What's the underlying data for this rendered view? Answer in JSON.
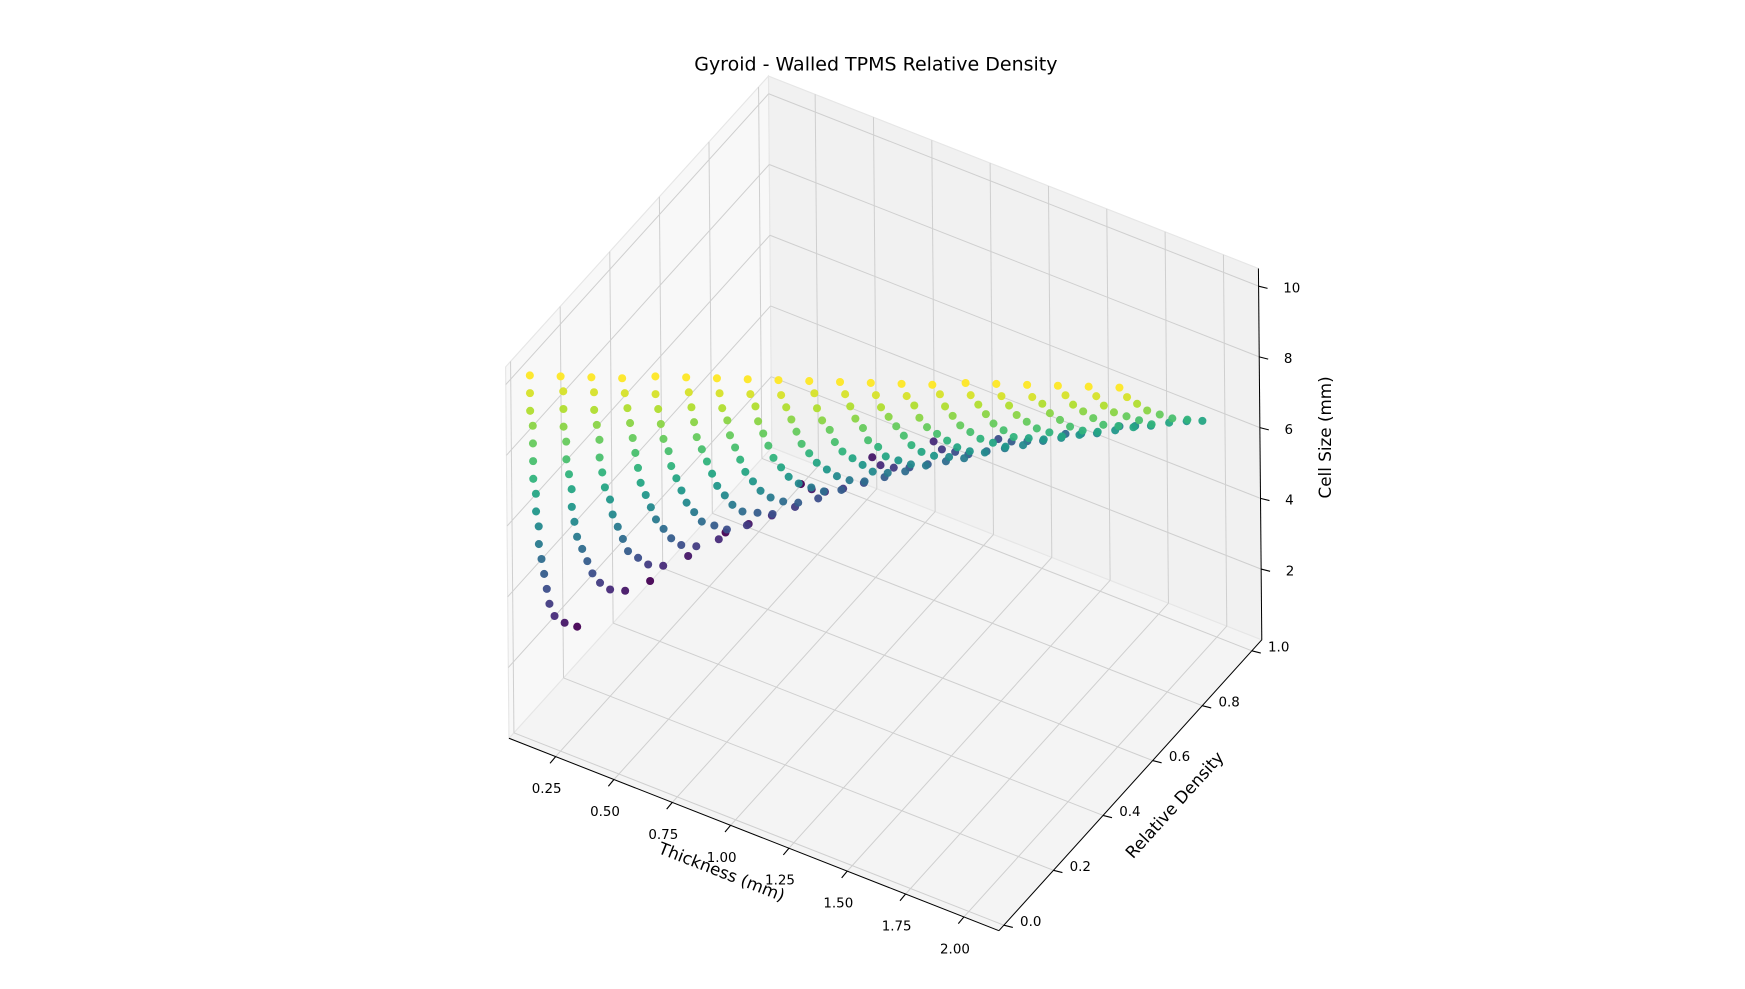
{
  "chart_data": {
    "type": "scatter3d",
    "title": "Gyroid - Walled TPMS Relative Density",
    "x_label": "Thickness (mm)",
    "y_label": "Relative Density",
    "z_label": "Cell Size (mm)",
    "colormap": "viridis",
    "grid": true,
    "xlim": [
      0.05,
      2.15
    ],
    "ylim": [
      -0.02,
      1.04
    ],
    "zlim": [
      0,
      10.5
    ],
    "xticks": [
      0.25,
      {
        "value": 0.5,
        "label": "0.50"
      },
      0.75,
      {
        "value": 1,
        "label": "1.00"
      },
      1.25,
      {
        "value": 1.5,
        "label": "1.50"
      },
      1.75,
      {
        "value": 2,
        "label": "2.00"
      }
    ],
    "yticks": [
      {
        "value": 0,
        "label": "0.0"
      },
      0.2,
      0.4,
      0.6,
      0.8,
      {
        "value": 1,
        "label": "1.0"
      }
    ],
    "zticks": [
      2,
      4,
      6,
      8,
      10
    ],
    "groups": [
      {
        "x": 0.1,
        "y": [
          0.03,
          0.03,
          0.03,
          0.04,
          0.04,
          0.04,
          0.04,
          0.05,
          0.05,
          0.06,
          0.06,
          0.07,
          0.08,
          0.09,
          0.1,
          0.12,
          0.16,
          0.21
        ],
        "z": [
          10,
          9.5,
          9,
          8.5,
          8,
          7.5,
          7,
          6.5,
          6,
          5.5,
          5,
          4.5,
          4,
          3.5,
          3,
          2.5,
          2,
          1.5
        ]
      },
      {
        "x": 0.2,
        "y": [
          0.06,
          0.07,
          0.07,
          0.07,
          0.08,
          0.08,
          0.09,
          0.1,
          0.1,
          0.11,
          0.12,
          0.14,
          0.16,
          0.18,
          0.21,
          0.25,
          0.31,
          0.41
        ],
        "z": [
          10,
          9.5,
          9,
          8.5,
          8,
          7.5,
          7,
          6.5,
          6,
          5.5,
          5,
          4.5,
          4,
          3.5,
          3,
          2.5,
          2,
          1.5
        ]
      },
      {
        "x": 0.3,
        "y": [
          0.09,
          0.1,
          0.1,
          0.11,
          0.12,
          0.12,
          0.13,
          0.14,
          0.16,
          0.17,
          0.19,
          0.21,
          0.23,
          0.27,
          0.31,
          0.37,
          0.47,
          0.62
        ],
        "z": [
          10,
          9.5,
          9,
          8.5,
          8,
          7.5,
          7,
          6.5,
          6,
          5.5,
          5,
          4.5,
          4,
          3.5,
          3,
          2.5,
          2,
          1.5
        ]
      },
      {
        "x": 0.4,
        "y": [
          0.12,
          0.13,
          0.14,
          0.15,
          0.16,
          0.17,
          0.18,
          0.19,
          0.21,
          0.23,
          0.25,
          0.28,
          0.31,
          0.35,
          0.41,
          0.5,
          0.62,
          0.83
        ],
        "z": [
          10,
          9.5,
          9,
          8.5,
          8,
          7.5,
          7,
          6.5,
          6,
          5.5,
          5,
          4.5,
          4,
          3.5,
          3,
          2.5,
          2,
          1.5
        ]
      },
      {
        "x": 0.5,
        "y": [
          0.16,
          0.16,
          0.17,
          0.18,
          0.19,
          0.21,
          0.22,
          0.24,
          0.26,
          0.28,
          0.31,
          0.34,
          0.39,
          0.44,
          0.52,
          0.62,
          0.78
        ],
        "z": [
          10,
          9.5,
          9,
          8.5,
          8,
          7.5,
          7,
          6.5,
          6,
          5.5,
          5,
          4.5,
          4,
          3.5,
          3,
          2.5,
          2
        ]
      },
      {
        "x": 0.6,
        "y": [
          0.19,
          0.2,
          0.21,
          0.22,
          0.23,
          0.25,
          0.27,
          0.29,
          0.31,
          0.34,
          0.37,
          0.41,
          0.47,
          0.53,
          0.62,
          0.74,
          0.93
        ],
        "z": [
          10,
          9.5,
          9,
          8.5,
          8,
          7.5,
          7,
          6.5,
          6,
          5.5,
          5,
          4.5,
          4,
          3.5,
          3,
          2.5,
          2
        ]
      },
      {
        "x": 0.7,
        "y": [
          0.22,
          0.23,
          0.24,
          0.26,
          0.27,
          0.29,
          0.31,
          0.33,
          0.36,
          0.39,
          0.43,
          0.48,
          0.54,
          0.62,
          0.72,
          0.87
        ],
        "z": [
          10,
          9.5,
          9,
          8.5,
          8,
          7.5,
          7,
          6.5,
          6,
          5.5,
          5,
          4.5,
          4,
          3.5,
          3,
          2.5
        ]
      },
      {
        "x": 0.8,
        "y": [
          0.25,
          0.26,
          0.28,
          0.29,
          0.31,
          0.33,
          0.35,
          0.38,
          0.41,
          0.45,
          0.5,
          0.55,
          0.62,
          0.71,
          0.83,
          0.99
        ],
        "z": [
          10,
          9.5,
          9,
          8.5,
          8,
          7.5,
          7,
          6.5,
          6,
          5.5,
          5,
          4.5,
          4,
          3.5,
          3,
          2.5
        ]
      },
      {
        "x": 0.9,
        "y": [
          0.28,
          0.29,
          0.31,
          0.33,
          0.35,
          0.37,
          0.4,
          0.43,
          0.47,
          0.51,
          0.56,
          0.62,
          0.7,
          0.8,
          0.93
        ],
        "z": [
          10,
          9.5,
          9,
          8.5,
          8,
          7.5,
          7,
          6.5,
          6,
          5.5,
          5,
          4.5,
          4,
          3.5,
          3
        ]
      },
      {
        "x": 1.0,
        "y": [
          0.31,
          0.33,
          0.34,
          0.36,
          0.39,
          0.41,
          0.44,
          0.48,
          0.52,
          0.56,
          0.62,
          0.69,
          0.78,
          0.89
        ],
        "z": [
          10,
          9.5,
          9,
          8.5,
          8,
          7.5,
          7,
          6.5,
          6,
          5.5,
          5,
          4.5,
          4,
          3.5
        ]
      },
      {
        "x": 1.1,
        "y": [
          0.34,
          0.36,
          0.38,
          0.4,
          0.43,
          0.45,
          0.49,
          0.52,
          0.57,
          0.62,
          0.68,
          0.76,
          0.85,
          0.97
        ],
        "z": [
          10,
          9.5,
          9,
          8.5,
          8,
          7.5,
          7,
          6.5,
          6,
          5.5,
          5,
          4.5,
          4,
          3.5
        ]
      },
      {
        "x": 1.2,
        "y": [
          0.37,
          0.39,
          0.41,
          0.44,
          0.47,
          0.5,
          0.53,
          0.57,
          0.62,
          0.68,
          0.74,
          0.83,
          0.93
        ],
        "z": [
          10,
          9.5,
          9,
          8.5,
          8,
          7.5,
          7,
          6.5,
          6,
          5.5,
          5,
          4.5,
          4
        ]
      },
      {
        "x": 1.3,
        "y": [
          0.4,
          0.42,
          0.45,
          0.47,
          0.5,
          0.54,
          0.58,
          0.62,
          0.67,
          0.73,
          0.81,
          0.9
        ],
        "z": [
          10,
          9.5,
          9,
          8.5,
          8,
          7.5,
          7,
          6.5,
          6,
          5.5,
          5,
          4.5
        ]
      },
      {
        "x": 1.4,
        "y": [
          0.43,
          0.46,
          0.48,
          0.51,
          0.54,
          0.58,
          0.62,
          0.67,
          0.72,
          0.79,
          0.87,
          0.96
        ],
        "z": [
          10,
          9.5,
          9,
          8.5,
          8,
          7.5,
          7,
          6.5,
          6,
          5.5,
          5,
          4.5
        ]
      },
      {
        "x": 1.5,
        "y": [
          0.47,
          0.49,
          0.52,
          0.55,
          0.58,
          0.62,
          0.66,
          0.72,
          0.78,
          0.85,
          0.93
        ],
        "z": [
          10,
          9.5,
          9,
          8.5,
          8,
          7.5,
          7,
          6.5,
          6,
          5.5,
          5
        ]
      },
      {
        "x": 1.6,
        "y": [
          0.5,
          0.52,
          0.55,
          0.58,
          0.62,
          0.66,
          0.71,
          0.76,
          0.83,
          0.9,
          0.99
        ],
        "z": [
          10,
          9.5,
          9,
          8.5,
          8,
          7.5,
          7,
          6.5,
          6,
          5.5,
          5
        ]
      },
      {
        "x": 1.7,
        "y": [
          0.53,
          0.55,
          0.59,
          0.62,
          0.66,
          0.7,
          0.75,
          0.81,
          0.88,
          0.96
        ],
        "z": [
          10,
          9.5,
          9,
          8.5,
          8,
          7.5,
          7,
          6.5,
          6,
          5.5
        ]
      },
      {
        "x": 1.8,
        "y": [
          0.56,
          0.59,
          0.62,
          0.66,
          0.7,
          0.74,
          0.8,
          0.86,
          0.93
        ],
        "z": [
          10,
          9.5,
          9,
          8.5,
          8,
          7.5,
          7,
          6.5,
          6
        ]
      },
      {
        "x": 1.9,
        "y": [
          0.59,
          0.62,
          0.65,
          0.69,
          0.74,
          0.79,
          0.84,
          0.91,
          0.98
        ],
        "z": [
          10,
          9.5,
          9,
          8.5,
          8,
          7.5,
          7,
          6.5,
          6
        ]
      },
      {
        "x": 2.0,
        "y": [
          0.62,
          0.65,
          0.69,
          0.73,
          0.78,
          0.83,
          0.89,
          0.95
        ],
        "z": [
          10,
          9.5,
          9,
          8.5,
          8,
          7.5,
          7,
          6.5
        ]
      }
    ]
  }
}
